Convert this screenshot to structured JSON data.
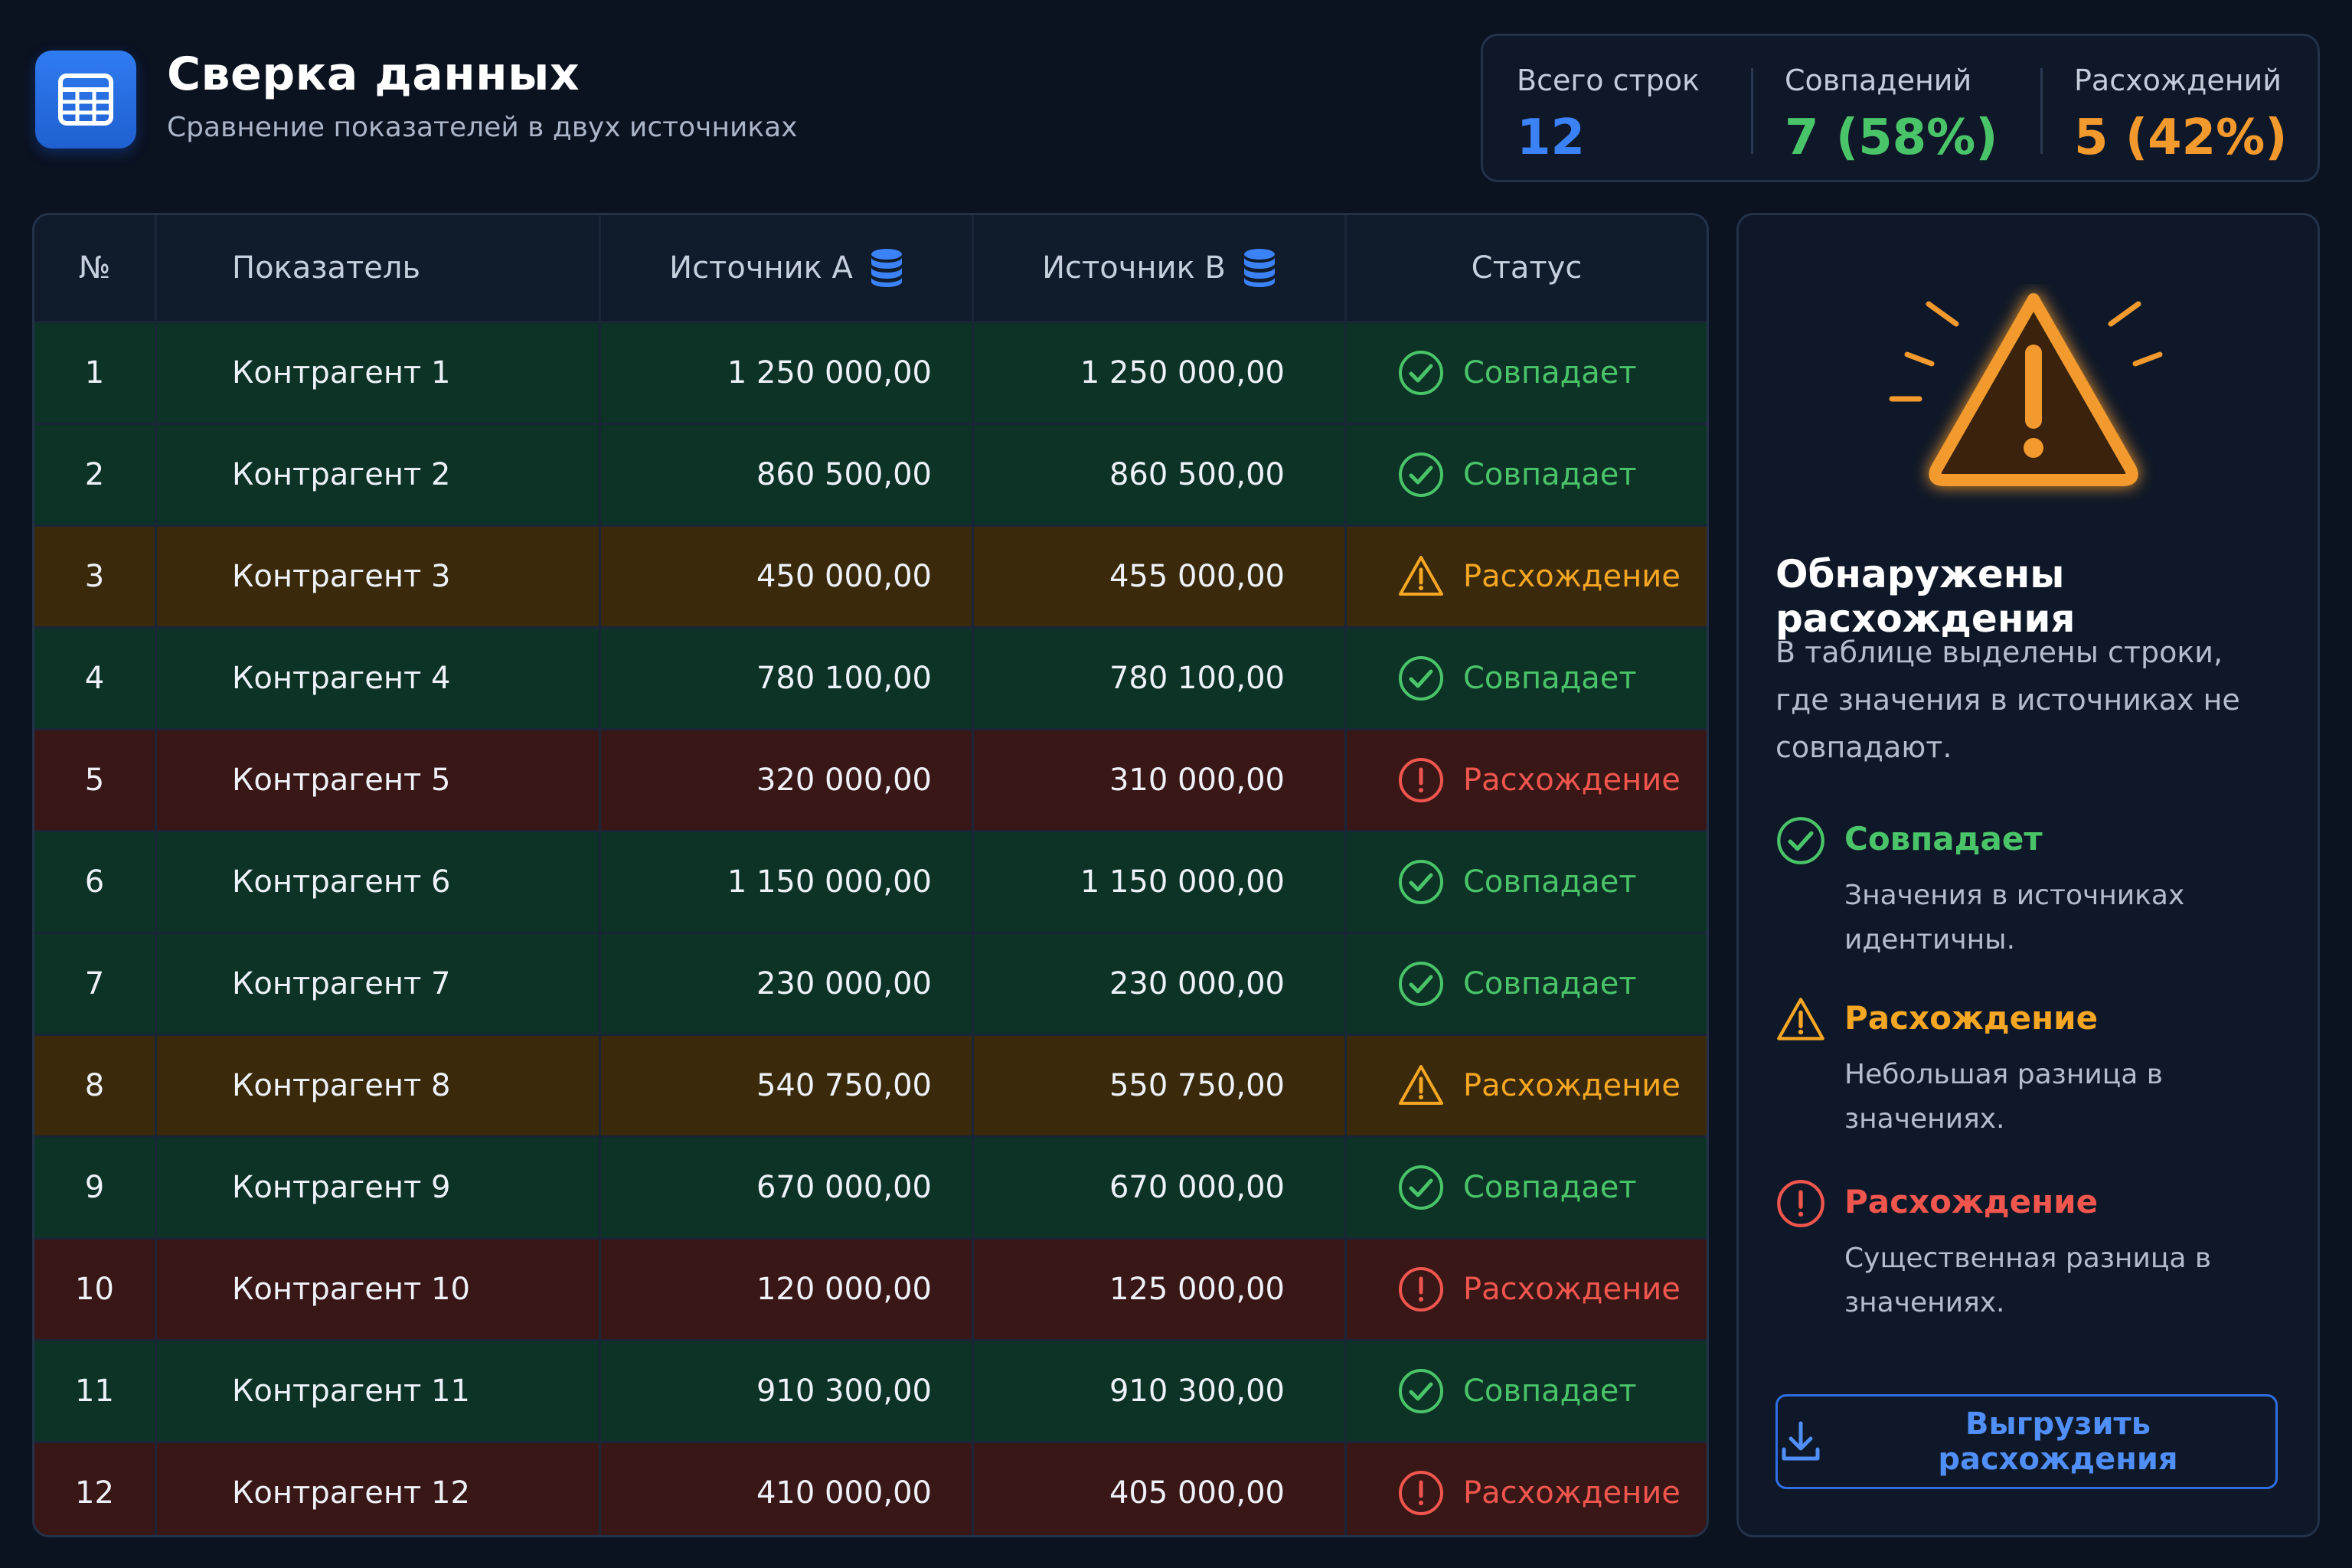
{
  "header": {
    "title": "Сверка данных",
    "subtitle": "Сравнение показателей в двух источниках"
  },
  "stats": {
    "total_label": "Всего строк",
    "total_value": "12",
    "matches_label": "Совпадений",
    "matches_value": "7 (58%)",
    "diffs_label": "Расхождений",
    "diffs_value": "5 (42%)"
  },
  "table": {
    "headers": {
      "no": "№",
      "name": "Показатель",
      "source_a": "Источник A",
      "source_b": "Источник B",
      "status": "Статус"
    },
    "rows": [
      {
        "no": "1",
        "name": "Контрагент 1",
        "a": "1 250 000,00",
        "b": "1 250 000,00",
        "status": "Совпадает"
      },
      {
        "no": "2",
        "name": "Контрагент 2",
        "a": "860 500,00",
        "b": "860 500,00",
        "status": "Совпадает"
      },
      {
        "no": "3",
        "name": "Контрагент 3",
        "a": "450 000,00",
        "b": "455 000,00",
        "status": "Расхождение"
      },
      {
        "no": "4",
        "name": "Контрагент 4",
        "a": "780 100,00",
        "b": "780 100,00",
        "status": "Совпадает"
      },
      {
        "no": "5",
        "name": "Контрагент 5",
        "a": "320 000,00",
        "b": "310 000,00",
        "status": "Расхождение"
      },
      {
        "no": "6",
        "name": "Контрагент 6",
        "a": "1 150 000,00",
        "b": "1 150 000,00",
        "status": "Совпадает"
      },
      {
        "no": "7",
        "name": "Контрагент 7",
        "a": "230 000,00",
        "b": "230 000,00",
        "status": "Совпадает"
      },
      {
        "no": "8",
        "name": "Контрагент 8",
        "a": "540 750,00",
        "b": "550 750,00",
        "status": "Расхождение"
      },
      {
        "no": "9",
        "name": "Контрагент 9",
        "a": "670 000,00",
        "b": "670 000,00",
        "status": "Совпадает"
      },
      {
        "no": "10",
        "name": "Контрагент 10",
        "a": "120 000,00",
        "b": "125 000,00",
        "status": "Расхождение"
      },
      {
        "no": "11",
        "name": "Контрагент 11",
        "a": "910 300,00",
        "b": "910 300,00",
        "status": "Совпадает"
      },
      {
        "no": "12",
        "name": "Контрагент 12",
        "a": "410 000,00",
        "b": "405 000,00",
        "status": "Расхождение"
      }
    ]
  },
  "panel": {
    "title": "Обнаружены расхождения",
    "description": "В таблице выделены строки, где значения в источниках не совпадают.",
    "legend": [
      {
        "title": "Совпадает",
        "desc": "Значения в источниках идентичны."
      },
      {
        "title": "Расхождение",
        "desc": "Небольшая разница в значениях."
      },
      {
        "title": "Расхождение",
        "desc": "Существенная разница в значениях."
      }
    ],
    "export_label": "Выгрузить расхождения"
  },
  "icons": {
    "app": "table-icon",
    "database": "database-icon",
    "match": "check-circle-icon",
    "minor": "warning-triangle-icon",
    "major": "exclamation-circle-icon",
    "export": "download-icon"
  },
  "colors": {
    "accent_blue": "#3b82f6",
    "match_green": "#4ac469",
    "minor_orange": "#f5a623",
    "major_red": "#f0564d",
    "match_row_bg": "#0c3326",
    "minor_row_bg": "#3a2a0b",
    "major_row_bg": "#3a1717"
  }
}
